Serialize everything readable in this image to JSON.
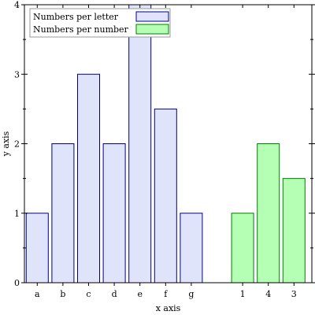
{
  "chart_data": {
    "type": "bar",
    "title": "",
    "xlabel": "x axis",
    "ylabel": "y axis",
    "ylim": [
      0,
      4
    ],
    "yticks": [
      0,
      1,
      2,
      3,
      4
    ],
    "grid": false,
    "legend": {
      "placement": "top-left"
    },
    "series": [
      {
        "name": "Numbers per letter",
        "categories": [
          "a",
          "b",
          "c",
          "d",
          "e",
          "f",
          "g"
        ],
        "values": [
          1,
          2,
          3,
          2,
          4,
          2.5,
          1
        ],
        "fill": "#e0e4fb",
        "stroke": "#00007f"
      },
      {
        "name": "Numbers per number",
        "categories": [
          "1",
          "4",
          "3"
        ],
        "values": [
          1,
          2,
          1.5
        ],
        "fill": "#b4ffb4",
        "stroke": "#007f00"
      }
    ]
  }
}
